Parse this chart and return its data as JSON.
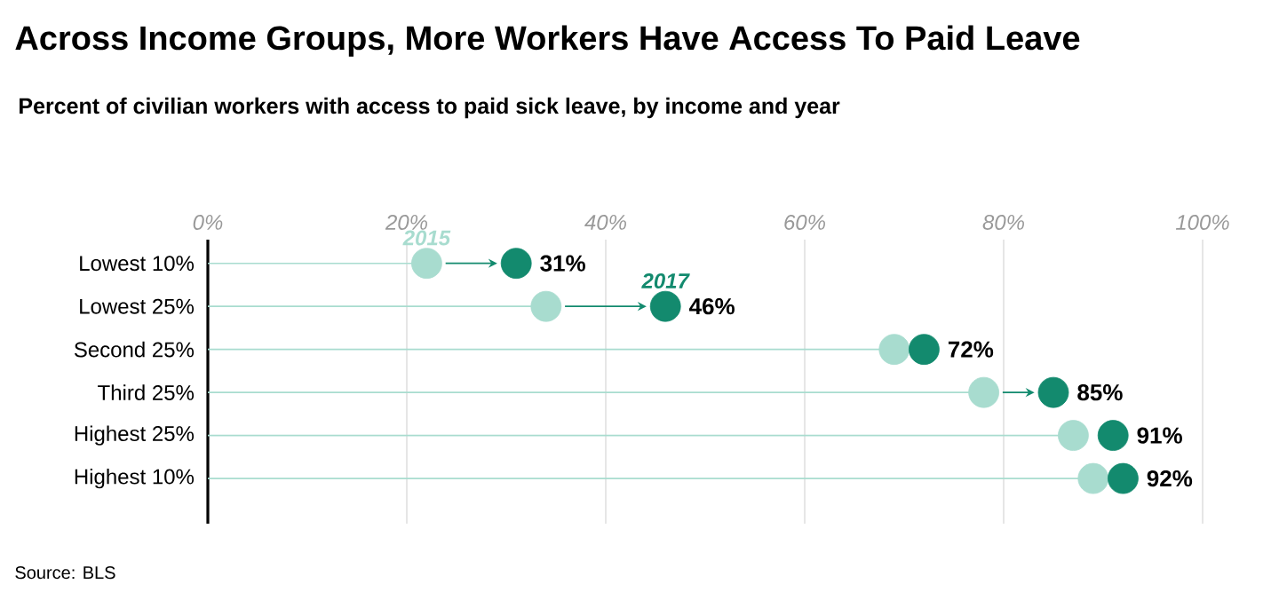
{
  "chart_data": {
    "type": "scatter",
    "orientation": "horizontal",
    "title": "Across Income Groups, More Workers Have Access To Paid Leave",
    "subtitle": "Percent of civilian workers with access to paid sick leave, by income and year",
    "categories": [
      "Lowest 10%",
      "Lowest 25%",
      "Second 25%",
      "Third 25%",
      "Highest 25%",
      "Highest 10%"
    ],
    "series": [
      {
        "name": "2015",
        "type": "lollipop",
        "color": "#a8dccf",
        "values": [
          22,
          34,
          69,
          78,
          87,
          89
        ]
      },
      {
        "name": "2017",
        "type": "scatter",
        "color": "#138a6e",
        "values": [
          31,
          46,
          72,
          85,
          91,
          92
        ],
        "value_labels": [
          "31%",
          "46%",
          "72%",
          "85%",
          "91%",
          "92%"
        ]
      }
    ],
    "xlim": [
      0,
      100
    ],
    "xticks": [
      {
        "value": 0,
        "label": "0%"
      },
      {
        "value": 20,
        "label": "20%"
      },
      {
        "value": 40,
        "label": "40%"
      },
      {
        "value": 60,
        "label": "60%"
      },
      {
        "value": 80,
        "label": "80%"
      },
      {
        "value": 100,
        "label": "100%"
      }
    ],
    "grid": "x",
    "marker": "circle",
    "legend": false,
    "annotations": [
      "Source: BLS"
    ]
  }
}
